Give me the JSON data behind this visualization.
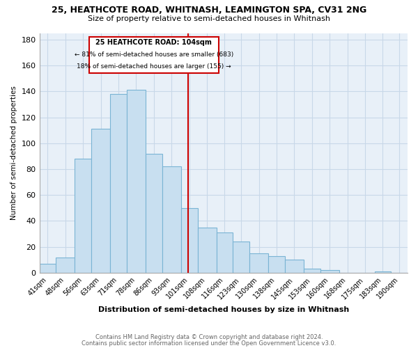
{
  "title": "25, HEATHCOTE ROAD, WHITNASH, LEAMINGTON SPA, CV31 2NG",
  "subtitle": "Size of property relative to semi-detached houses in Whitnash",
  "xlabel": "Distribution of semi-detached houses by size in Whitnash",
  "ylabel": "Number of semi-detached properties",
  "bin_labels": [
    "41sqm",
    "48sqm",
    "56sqm",
    "63sqm",
    "71sqm",
    "78sqm",
    "86sqm",
    "93sqm",
    "101sqm",
    "108sqm",
    "116sqm",
    "123sqm",
    "130sqm",
    "138sqm",
    "145sqm",
    "153sqm",
    "160sqm",
    "168sqm",
    "175sqm",
    "183sqm",
    "190sqm"
  ],
  "bin_edges": [
    41,
    48,
    56,
    63,
    71,
    78,
    86,
    93,
    101,
    108,
    116,
    123,
    130,
    138,
    145,
    153,
    160,
    168,
    175,
    183,
    190,
    197
  ],
  "values": [
    7,
    12,
    88,
    111,
    138,
    141,
    92,
    82,
    50,
    35,
    31,
    24,
    15,
    13,
    10,
    3,
    2,
    0,
    0,
    1,
    0
  ],
  "bar_color": "#c8dff0",
  "bar_edge_color": "#7ab4d4",
  "grid_color": "#c8d8e8",
  "bg_color": "#e8f0f8",
  "ref_line_x": 104,
  "ref_line_color": "#cc0000",
  "annotation_text_line1": "25 HEATHCOTE ROAD: 104sqm",
  "annotation_text_line2": "← 81% of semi-detached houses are smaller (683)",
  "annotation_text_line3": "18% of semi-detached houses are larger (155) →",
  "annotation_box_edge_color": "#cc0000",
  "footer_line1": "Contains HM Land Registry data © Crown copyright and database right 2024.",
  "footer_line2": "Contains public sector information licensed under the Open Government Licence v3.0.",
  "ylim": [
    0,
    185
  ],
  "yticks": [
    0,
    20,
    40,
    60,
    80,
    100,
    120,
    140,
    160,
    180
  ]
}
